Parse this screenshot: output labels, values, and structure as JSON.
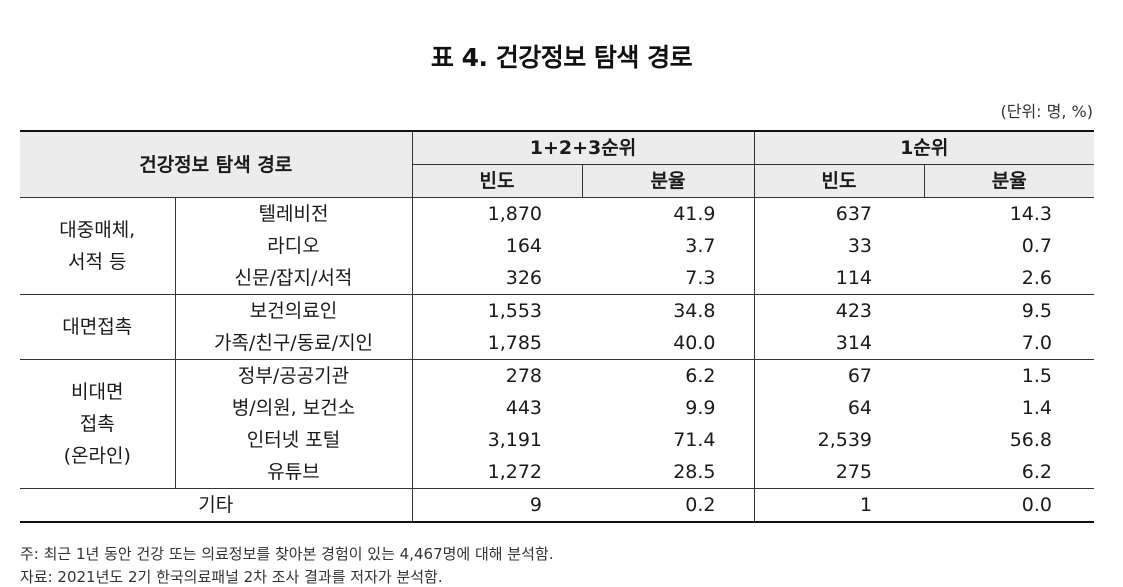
{
  "title": "표 4. 건강정보 탐색 경로",
  "unit": "(단위: 명, %)",
  "header": {
    "corner": "건강정보 탐색 경로",
    "group1": "1+2+3순위",
    "group2": "1순위",
    "freq": "빈도",
    "ratio": "분율"
  },
  "groups": [
    {
      "label": "대중매체,\n서적 등",
      "rows": [
        {
          "name": "텔레비전",
          "f1": "1,870",
          "r1": "41.9",
          "f2": "637",
          "r2": "14.3"
        },
        {
          "name": "라디오",
          "f1": "164",
          "r1": "3.7",
          "f2": "33",
          "r2": "0.7"
        },
        {
          "name": "신문/잡지/서적",
          "f1": "326",
          "r1": "7.3",
          "f2": "114",
          "r2": "2.6"
        }
      ]
    },
    {
      "label": "대면접촉",
      "rows": [
        {
          "name": "보건의료인",
          "f1": "1,553",
          "r1": "34.8",
          "f2": "423",
          "r2": "9.5"
        },
        {
          "name": "가족/친구/동료/지인",
          "f1": "1,785",
          "r1": "40.0",
          "f2": "314",
          "r2": "7.0"
        }
      ]
    },
    {
      "label": "비대면\n접촉\n(온라인)",
      "rows": [
        {
          "name": "정부/공공기관",
          "f1": "278",
          "r1": "6.2",
          "f2": "67",
          "r2": "1.5"
        },
        {
          "name": "병/의원, 보건소",
          "f1": "443",
          "r1": "9.9",
          "f2": "64",
          "r2": "1.4"
        },
        {
          "name": "인터넷 포털",
          "f1": "3,191",
          "r1": "71.4",
          "f2": "2,539",
          "r2": "56.8"
        },
        {
          "name": "유튜브",
          "f1": "1,272",
          "r1": "28.5",
          "f2": "275",
          "r2": "6.2"
        }
      ]
    }
  ],
  "other": {
    "name": "기타",
    "f1": "9",
    "r1": "0.2",
    "f2": "1",
    "r2": "0.0"
  },
  "notes": {
    "note": "주: 최근 1년 동안 건강 또는 의료정보를 찾아본 경험이 있는 4,467명에 대해 분석함.",
    "source": "자료: 2021년도 2기 한국의료패널 2차 조사 결과를 저자가 분석함."
  }
}
